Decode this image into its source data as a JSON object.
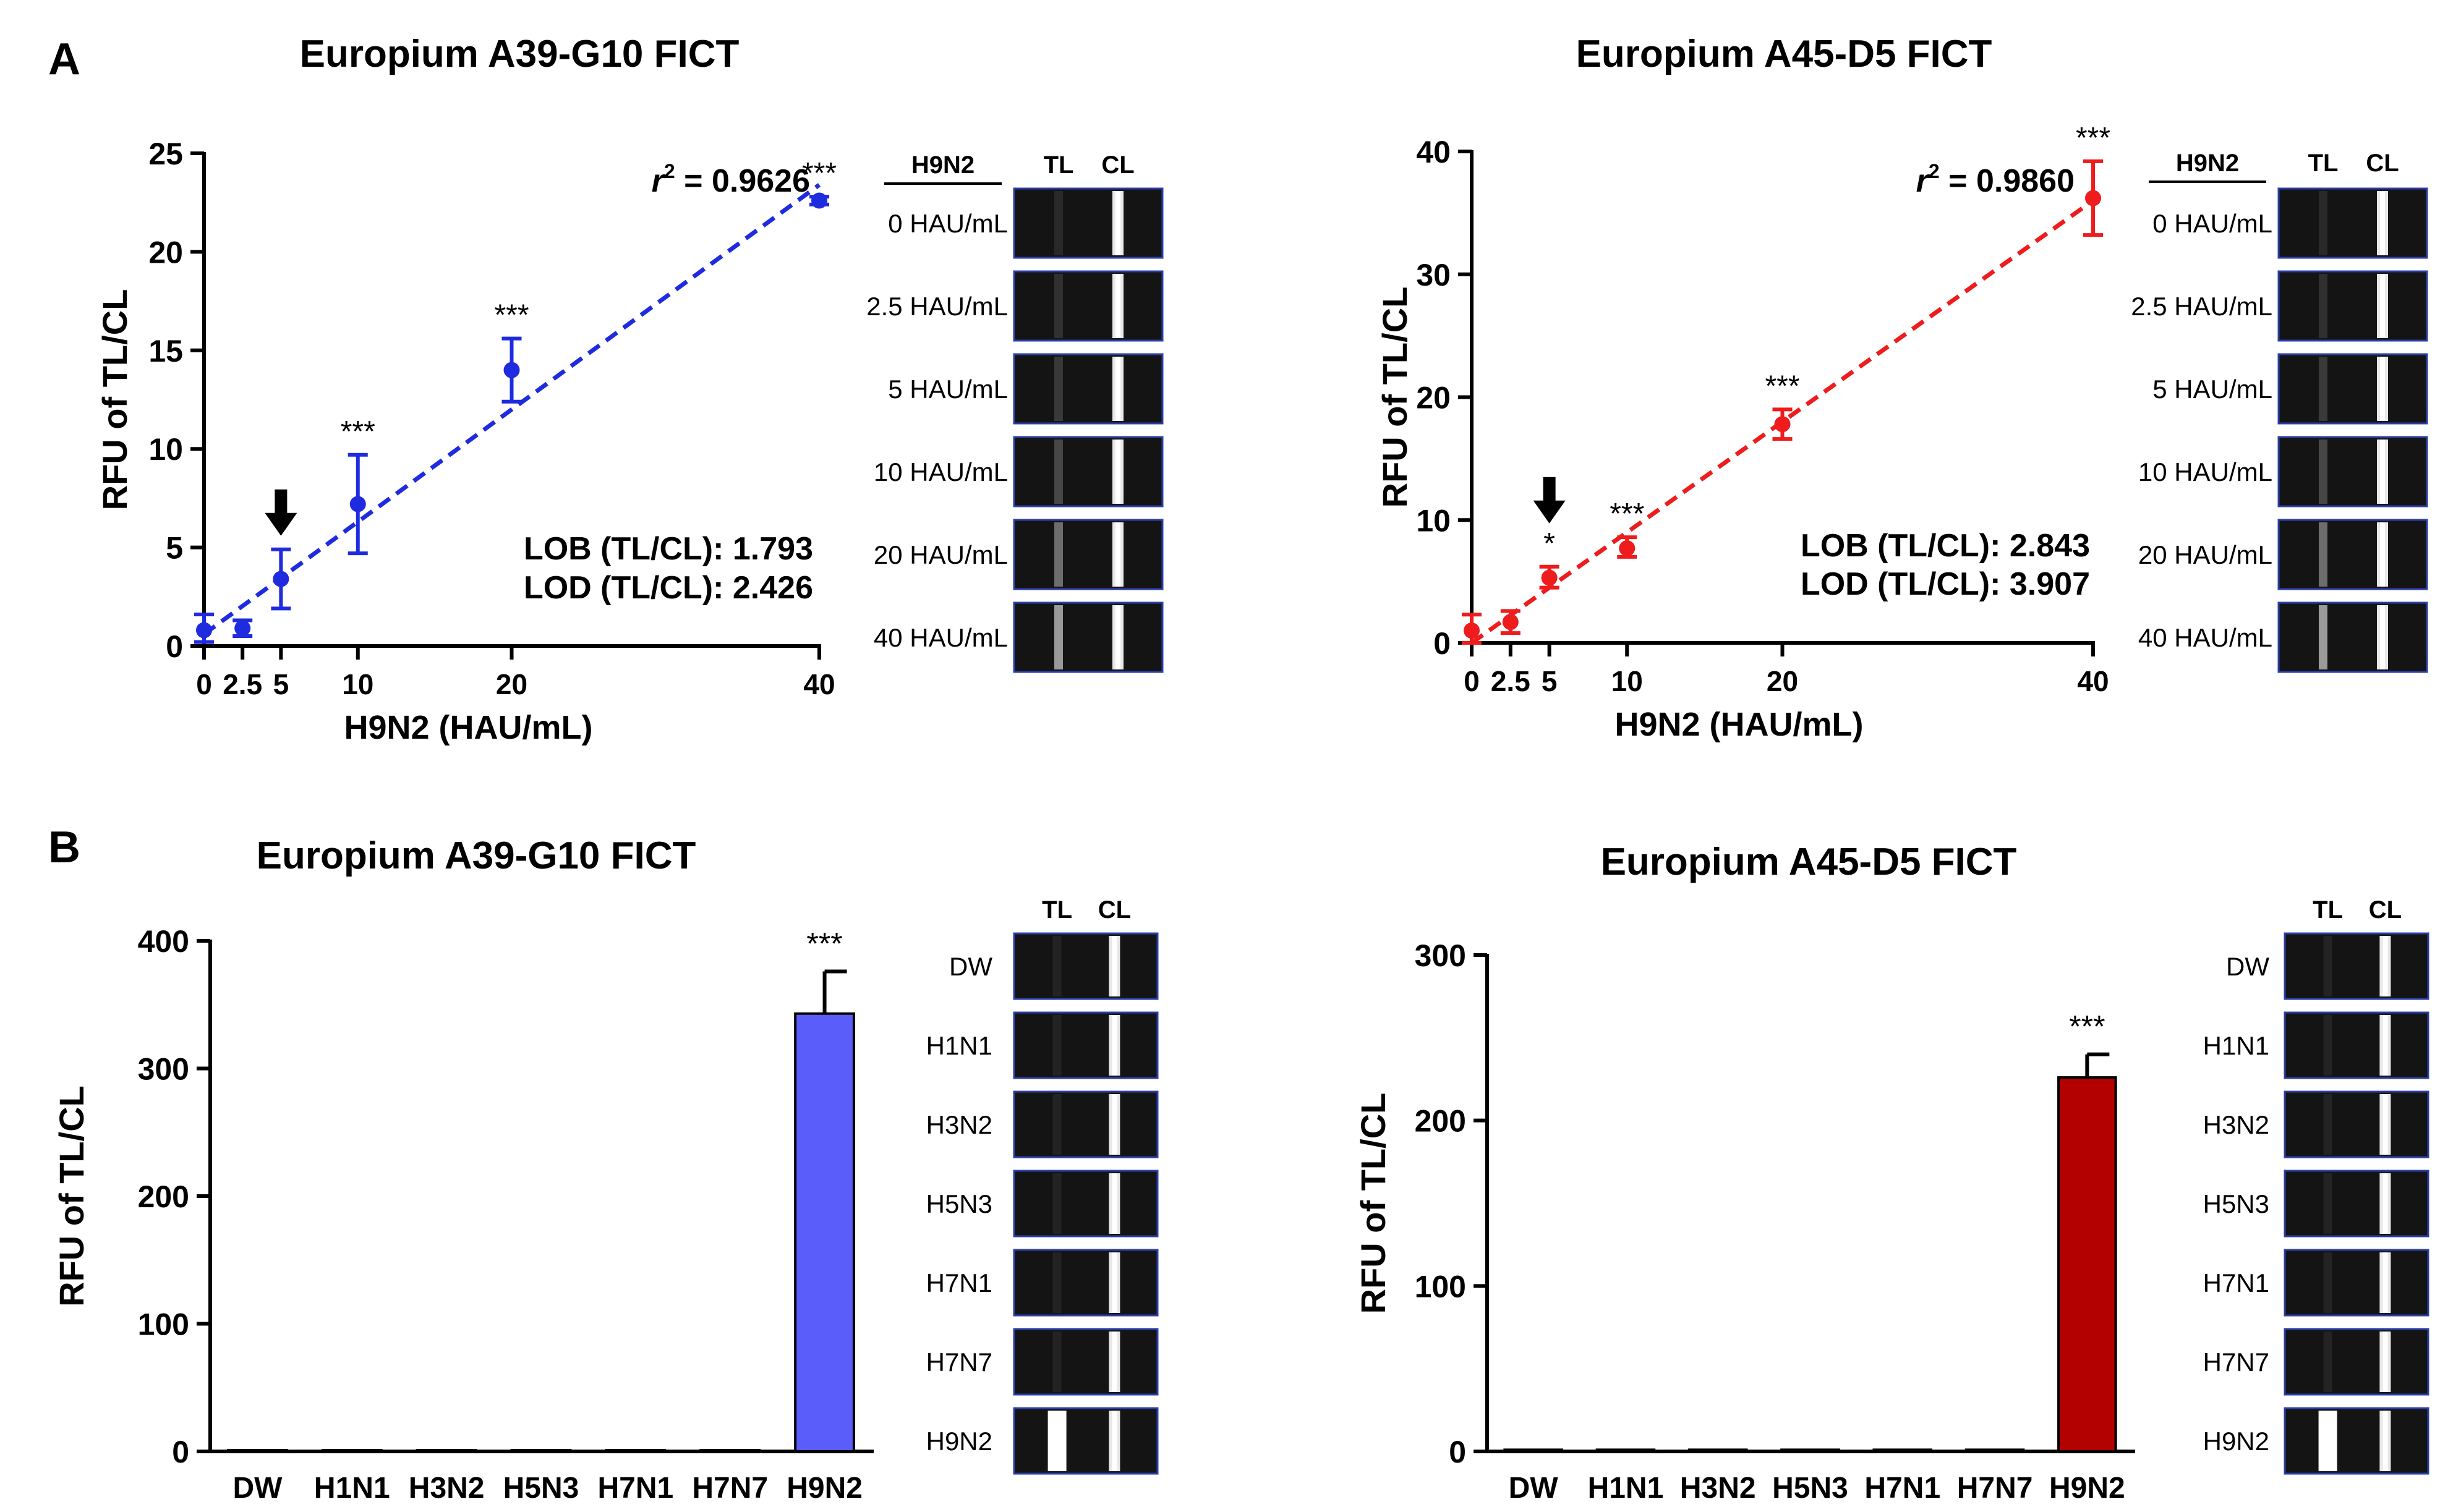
{
  "panels": [
    {
      "id": "A",
      "label": "A"
    },
    {
      "id": "B",
      "label": "B"
    }
  ],
  "colors": {
    "blue": "#1f2bdf",
    "blue_bar": "#5b5dfa",
    "red": "#ee1c1c",
    "red_bar": "#b30000",
    "black": "#000000",
    "strip_bg": "#141414",
    "strip_border": "#2b3fa8"
  },
  "chart_data": [
    {
      "id": "A-left",
      "type": "scatter",
      "title": "Europium A39-G10 FICT",
      "xlabel": "H9N2 (HAU/mL)",
      "ylabel": "RFU of TL/CL",
      "xlim": [
        0,
        40
      ],
      "ylim": [
        0,
        25
      ],
      "xticks": [
        0,
        2.5,
        5,
        10,
        20,
        40
      ],
      "xtick_labels": [
        "0",
        "2.5",
        "5",
        "10",
        "20",
        "40"
      ],
      "yticks": [
        0,
        5,
        10,
        15,
        20,
        25
      ],
      "color": "#1f2bdf",
      "points": [
        {
          "x": 0,
          "y": 0.8,
          "lo": 0.2,
          "hi": 1.6,
          "sig": ""
        },
        {
          "x": 2.5,
          "y": 0.9,
          "lo": 0.5,
          "hi": 1.3,
          "sig": ""
        },
        {
          "x": 5,
          "y": 3.4,
          "lo": 1.9,
          "hi": 4.9,
          "sig": ""
        },
        {
          "x": 10,
          "y": 7.2,
          "lo": 4.7,
          "hi": 9.7,
          "sig": "***"
        },
        {
          "x": 20,
          "y": 14.0,
          "lo": 12.4,
          "hi": 15.6,
          "sig": "***"
        },
        {
          "x": 40,
          "y": 22.6,
          "lo": 22.4,
          "hi": 22.8,
          "sig": "***"
        }
      ],
      "fit": {
        "x": [
          0,
          40
        ],
        "y": [
          0.6,
          23.4
        ]
      },
      "r2": "= 0.9626",
      "r_symbol": "r",
      "r_power": "2",
      "lob": "LOB (TL/CL): 1.793",
      "lod": "LOD (TL/CL): 2.426",
      "arrow_at": 5
    },
    {
      "id": "A-right",
      "type": "scatter",
      "title": "Europium A45-D5 FICT",
      "xlabel": "H9N2 (HAU/mL)",
      "ylabel": "RFU of TL/CL",
      "xlim": [
        0,
        40
      ],
      "ylim": [
        0,
        40
      ],
      "xticks": [
        0,
        2.5,
        5,
        10,
        20,
        40
      ],
      "xtick_labels": [
        "0",
        "2.5",
        "5",
        "10",
        "20",
        "40"
      ],
      "yticks": [
        0,
        10,
        20,
        30,
        40
      ],
      "color": "#ee1c1c",
      "points": [
        {
          "x": 0,
          "y": 1.0,
          "lo": 0.0,
          "hi": 2.3,
          "sig": ""
        },
        {
          "x": 2.5,
          "y": 1.7,
          "lo": 0.8,
          "hi": 2.6,
          "sig": ""
        },
        {
          "x": 5,
          "y": 5.3,
          "lo": 4.5,
          "hi": 6.2,
          "sig": "*"
        },
        {
          "x": 10,
          "y": 7.7,
          "lo": 7.0,
          "hi": 8.6,
          "sig": "***"
        },
        {
          "x": 20,
          "y": 17.8,
          "lo": 16.6,
          "hi": 19.0,
          "sig": "***"
        },
        {
          "x": 40,
          "y": 36.2,
          "lo": 33.2,
          "hi": 39.2,
          "sig": "***"
        }
      ],
      "fit": {
        "x": [
          0,
          40
        ],
        "y": [
          0.0,
          36.0
        ]
      },
      "r2": "= 0.9860",
      "r_symbol": "r",
      "r_power": "2",
      "lob": "LOB (TL/CL): 2.843",
      "lod": "LOD (TL/CL): 3.907",
      "arrow_at": 5
    },
    {
      "id": "B-left",
      "type": "bar",
      "title": "Europium A39-G10 FICT",
      "xlabel": "",
      "ylabel": "RFU of TL/CL",
      "categories": [
        "DW",
        "H1N1",
        "H3N2",
        "H5N3",
        "H7N1",
        "H7N7",
        "H9N2"
      ],
      "values": [
        1,
        1,
        1,
        1,
        1,
        1,
        343
      ],
      "errors": [
        0,
        0,
        0,
        0,
        0,
        0,
        33
      ],
      "sig": [
        "",
        "",
        "",
        "",
        "",
        "",
        "***"
      ],
      "ylim": [
        0,
        400
      ],
      "yticks": [
        0,
        100,
        200,
        300,
        400
      ],
      "color": "#5b5dfa"
    },
    {
      "id": "B-right",
      "type": "bar",
      "title": "Europium A45-D5 FICT",
      "xlabel": "",
      "ylabel": "RFU of TL/CL",
      "categories": [
        "DW",
        "H1N1",
        "H3N2",
        "H5N3",
        "H7N1",
        "H7N7",
        "H9N2"
      ],
      "values": [
        1,
        1,
        1,
        1,
        1,
        1,
        226
      ],
      "errors": [
        0,
        0,
        0,
        0,
        0,
        0,
        14
      ],
      "sig": [
        "",
        "",
        "",
        "",
        "",
        "",
        "***"
      ],
      "ylim": [
        0,
        300
      ],
      "yticks": [
        0,
        100,
        200,
        300
      ],
      "color": "#b30000"
    }
  ],
  "strip_sets": [
    {
      "id": "strips-A-left",
      "header": "H9N2",
      "tl": "TL",
      "cl": "CL",
      "labels": [
        "0 HAU/mL",
        "2.5 HAU/mL",
        "5 HAU/mL",
        "10 HAU/mL",
        "20 HAU/mL",
        "40 HAU/mL"
      ],
      "tl_intensity": [
        0.05,
        0.08,
        0.12,
        0.18,
        0.35,
        0.55
      ]
    },
    {
      "id": "strips-A-right",
      "header": "H9N2",
      "tl": "TL",
      "cl": "CL",
      "labels": [
        "0 HAU/mL",
        "2.5 HAU/mL",
        "5 HAU/mL",
        "10 HAU/mL",
        "20 HAU/mL",
        "40 HAU/mL"
      ],
      "tl_intensity": [
        0.05,
        0.08,
        0.12,
        0.18,
        0.35,
        0.55
      ]
    },
    {
      "id": "strips-B-left",
      "header": "",
      "tl": "TL",
      "cl": "CL",
      "labels": [
        "DW",
        "H1N1",
        "H3N2",
        "H5N3",
        "H7N1",
        "H7N7",
        "H9N2"
      ],
      "tl_intensity": [
        0.02,
        0.02,
        0.02,
        0.02,
        0.02,
        0.02,
        1.0
      ]
    },
    {
      "id": "strips-B-right",
      "header": "",
      "tl": "TL",
      "cl": "CL",
      "labels": [
        "DW",
        "H1N1",
        "H3N2",
        "H5N3",
        "H7N1",
        "H7N7",
        "H9N2"
      ],
      "tl_intensity": [
        0.02,
        0.02,
        0.02,
        0.02,
        0.02,
        0.02,
        1.0
      ]
    }
  ]
}
